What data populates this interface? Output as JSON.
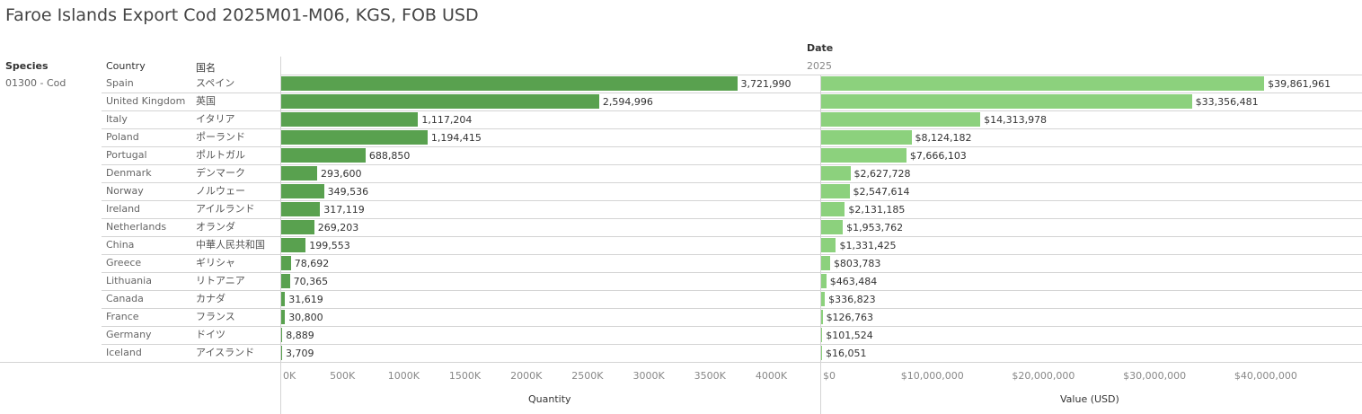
{
  "title": "Faroe Islands Export Cod 2025M01-M06, KGS, FOB USD",
  "headers": {
    "species": "Species",
    "country": "Country",
    "japanese": "国名",
    "date": "Date",
    "year": "2025"
  },
  "species_value": "01300 - Cod",
  "colors": {
    "quantity_bar": "#59a14f",
    "value_bar": "#8cd17d",
    "grid": "#d4d4d4"
  },
  "chart_data": {
    "type": "bar",
    "orientation": "horizontal",
    "categories": [
      "Spain",
      "United Kingdom",
      "Italy",
      "Poland",
      "Portugal",
      "Denmark",
      "Norway",
      "Ireland",
      "Netherlands",
      "China",
      "Greece",
      "Lithuania",
      "Canada",
      "France",
      "Germany",
      "Iceland"
    ],
    "categories_jp": [
      "スペイン",
      "英国",
      "イタリア",
      "ポーランド",
      "ポルトガル",
      "デンマーク",
      "ノルウェー",
      "アイルランド",
      "オランダ",
      "中華人民共和国",
      "ギリシャ",
      "リトアニア",
      "カナダ",
      "フランス",
      "ドイツ",
      "アイスランド"
    ],
    "series": [
      {
        "name": "Quantity",
        "values": [
          3721990,
          2594996,
          1117204,
          1194415,
          688850,
          293600,
          349536,
          317119,
          269203,
          199553,
          78692,
          70365,
          31619,
          30800,
          8889,
          3709
        ],
        "labels": [
          "3,721,990",
          "2,594,996",
          "1,117,204",
          "1,194,415",
          "688,850",
          "293,600",
          "349,536",
          "317,119",
          "269,203",
          "199,553",
          "78,692",
          "70,365",
          "31,619",
          "30,800",
          "8,889",
          "3,709"
        ],
        "xlim": [
          0,
          4400000
        ],
        "ticks": [
          0,
          500000,
          1000000,
          1500000,
          2000000,
          2500000,
          3000000,
          3500000,
          4000000
        ],
        "tick_labels": [
          "0K",
          "500K",
          "1000K",
          "1500K",
          "2000K",
          "2500K",
          "3000K",
          "3500K",
          "4000K"
        ],
        "xlabel": "Quantity"
      },
      {
        "name": "Value (USD)",
        "values": [
          39861961,
          33356481,
          14313978,
          8124182,
          7666103,
          2627728,
          2547614,
          2131185,
          1953762,
          1331425,
          803783,
          463484,
          336823,
          126763,
          101524,
          16051
        ],
        "labels": [
          "$39,861,961",
          "$33,356,481",
          "$14,313,978",
          "$8,124,182",
          "$7,666,103",
          "$2,627,728",
          "$2,547,614",
          "$2,131,185",
          "$1,953,762",
          "$1,331,425",
          "$803,783",
          "$463,484",
          "$336,823",
          "$126,763",
          "$101,524",
          "$16,051"
        ],
        "xlim": [
          0,
          48500000
        ],
        "ticks": [
          0,
          10000000,
          20000000,
          30000000,
          40000000
        ],
        "tick_labels": [
          "$0",
          "$10,000,000",
          "$20,000,000",
          "$30,000,000",
          "$40,000,000"
        ],
        "xlabel": "Value (USD)"
      }
    ]
  }
}
